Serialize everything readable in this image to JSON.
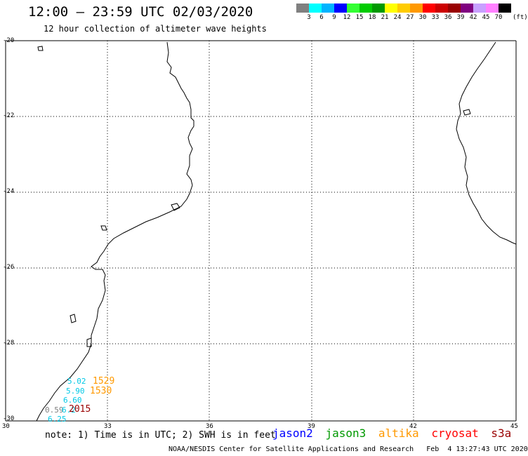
{
  "header": {
    "title": "12:00 – 23:59 UTC 02/03/2020",
    "subtitle": "12 hour collection of altimeter wave heights"
  },
  "legend": {
    "colors": [
      "#808080",
      "#00ffff",
      "#00b4ff",
      "#0000ff",
      "#33ff33",
      "#00cc00",
      "#009900",
      "#ffff00",
      "#ffcc00",
      "#ff9900",
      "#ff0000",
      "#cc0000",
      "#990000",
      "#800080",
      "#c8a0ff",
      "#ff80ff",
      "#000000"
    ],
    "ticks": [
      "3",
      "6",
      "9",
      "12",
      "15",
      "18",
      "21",
      "24",
      "27",
      "30",
      "33",
      "36",
      "39",
      "42",
      "45",
      "70"
    ],
    "unit": "(ft)"
  },
  "map": {
    "lat_labels": [
      "-20",
      "-22",
      "-24",
      "-26",
      "-28",
      "-30"
    ],
    "lon_labels": [
      "30",
      "33",
      "36",
      "39",
      "42",
      "45"
    ],
    "observations": [
      {
        "text": "5.02",
        "color": "#00c8e6"
      },
      {
        "text": "1529",
        "color": "#ff9900"
      },
      {
        "text": "5.90",
        "color": "#00c8e6"
      },
      {
        "text": "1530",
        "color": "#ff9900"
      },
      {
        "text": "6.60",
        "color": "#00c8e6"
      },
      {
        "text": "0.59",
        "color": "#808080"
      },
      {
        "text": "6.2",
        "color": "#00c8e6"
      },
      {
        "text": "2015",
        "color": "#990000"
      },
      {
        "text": "6.25",
        "color": "#00c8e6"
      }
    ]
  },
  "footer": {
    "note": "note: 1) Time is in UTC; 2) SWH is in feet",
    "missions": [
      {
        "name": "jason2",
        "color": "#0000ff"
      },
      {
        "name": "jason3",
        "color": "#009900"
      },
      {
        "name": "altika",
        "color": "#ff9900"
      },
      {
        "name": "cryosat",
        "color": "#ff0000"
      },
      {
        "name": "s3a",
        "color": "#990000"
      }
    ],
    "credit": "NOAA/NESDIS Center for Satellite Applications and Research   Feb  4 13:27:43 UTC 2020"
  }
}
